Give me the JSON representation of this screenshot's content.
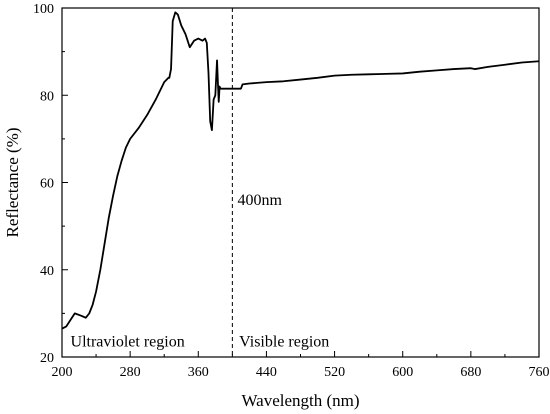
{
  "chart_data": {
    "type": "line",
    "title": "",
    "xlabel": "Wavelength (nm)",
    "ylabel": "Reflectance (%)",
    "xlim": [
      200,
      760
    ],
    "ylim": [
      20,
      100
    ],
    "grid": false,
    "x_ticks": [
      200,
      280,
      360,
      440,
      520,
      600,
      680,
      760
    ],
    "x_tick_labels": [
      "200",
      "280",
      "360",
      "440",
      "520",
      "600",
      "680",
      "760"
    ],
    "y_ticks": [
      20,
      40,
      60,
      80,
      100
    ],
    "y_tick_labels": [
      "20",
      "40",
      "60",
      "80",
      "100"
    ],
    "series": [
      {
        "color": "#000000",
        "x": [
          200,
          205,
          210,
          215,
          222,
          228,
          232,
          236,
          240,
          245,
          250,
          255,
          260,
          265,
          270,
          275,
          280,
          290,
          300,
          310,
          320,
          325,
          326,
          328,
          330,
          333,
          336,
          340,
          345,
          350,
          355,
          360,
          365,
          368,
          370,
          372,
          374,
          376,
          378,
          380,
          382,
          383,
          384,
          385,
          386,
          388,
          390,
          395,
          400,
          410,
          412,
          420,
          440,
          460,
          480,
          500,
          520,
          540,
          560,
          580,
          600,
          620,
          640,
          660,
          680,
          685,
          700,
          720,
          740,
          760
        ],
        "y": [
          26.5,
          27,
          28.5,
          30,
          29.5,
          29,
          30,
          32,
          35,
          40,
          46,
          52,
          57,
          61.5,
          65,
          68,
          70,
          72.5,
          75.5,
          79,
          83,
          84,
          84,
          86,
          97,
          99,
          98.5,
          96,
          94,
          91,
          92.5,
          93,
          92.5,
          93,
          92,
          85,
          74,
          72,
          79,
          80,
          88,
          83,
          78.5,
          82,
          81.5,
          81.5,
          81.5,
          81.5,
          81.5,
          81.5,
          82.5,
          82.7,
          83,
          83.2,
          83.6,
          84,
          84.5,
          84.7,
          84.8,
          84.9,
          85,
          85.4,
          85.7,
          86,
          86.2,
          86,
          86.5,
          87,
          87.5,
          87.8
        ]
      }
    ],
    "reference_line": {
      "x": 400,
      "style": "dashed",
      "label": "400nm"
    },
    "annotations": [
      {
        "text": "Ultraviolet region",
        "x": 210,
        "y": 23.5
      },
      {
        "text": "Visible region",
        "x": 408,
        "y": 23.5
      },
      {
        "text": "400nm",
        "x": 406,
        "y": 56
      }
    ]
  }
}
